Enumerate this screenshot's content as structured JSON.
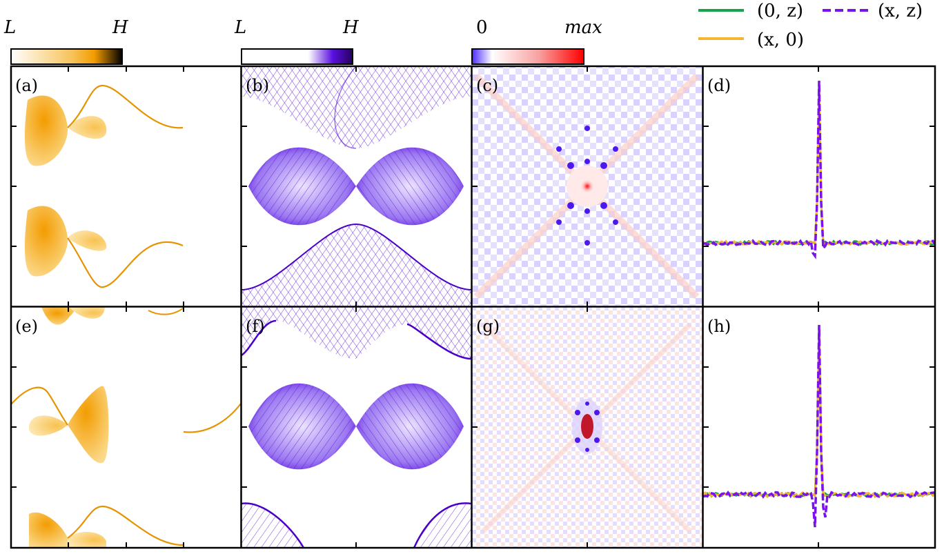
{
  "colorbars": [
    {
      "low_label": "L",
      "high_label": "H",
      "colors": [
        "#ffffff",
        "#f7a600",
        "#000000"
      ]
    },
    {
      "low_label": "L",
      "high_label": "H",
      "colors": [
        "#ffffff",
        "#5a10e0",
        "#2a0070"
      ]
    },
    {
      "low_label": "0",
      "high_label": "max",
      "colors": [
        "#4b2bff",
        "#ffffff",
        "#ff0000"
      ]
    }
  ],
  "panel_labels": [
    "(a)",
    "(b)",
    "(c)",
    "(d)",
    "(e)",
    "(f)",
    "(g)",
    "(h)"
  ],
  "legend": [
    {
      "label": "(0, z)",
      "color": "#16a34a",
      "style": "solid"
    },
    {
      "label": "(x, 0)",
      "color": "#f2b631",
      "style": "solid"
    },
    {
      "label": "(x, z)",
      "color": "#7a12ee",
      "style": "dashed"
    }
  ],
  "colors": {
    "orange": "#f5b22a",
    "orange_dark": "#e59400",
    "purple": "#6a17e0",
    "purple_light": "#b9a3f5",
    "red": "#ff1a1a"
  },
  "chart_data": [
    {
      "type": "heatmap",
      "panel": "(a)",
      "description": "spectral function, orange colormap"
    },
    {
      "type": "heatmap",
      "panel": "(b)",
      "description": "spectral function, purple colormap"
    },
    {
      "type": "heatmap",
      "panel": "(c)",
      "description": "real-space map, 0 to max"
    },
    {
      "type": "line",
      "panel": "(d)",
      "series": [
        {
          "name": "(0, z)",
          "peak": 1.0,
          "baseline": 0.0
        },
        {
          "name": "(x, 0)",
          "peak": 1.0,
          "baseline": 0.0
        },
        {
          "name": "(x, z)",
          "peak": 1.0,
          "baseline": 0.0,
          "dip": -0.08
        }
      ]
    },
    {
      "type": "heatmap",
      "panel": "(e)",
      "description": "spectral function, orange colormap"
    },
    {
      "type": "heatmap",
      "panel": "(f)",
      "description": "spectral function, purple colormap"
    },
    {
      "type": "heatmap",
      "panel": "(g)",
      "description": "real-space map, 0 to max"
    },
    {
      "type": "line",
      "panel": "(h)",
      "series": [
        {
          "name": "(0, z)",
          "peak": 1.0,
          "baseline": 0.0
        },
        {
          "name": "(x, 0)",
          "peak": 1.0,
          "baseline": 0.0
        },
        {
          "name": "(x, z)",
          "peak": 1.0,
          "baseline": 0.0,
          "dip": -0.2
        }
      ]
    }
  ]
}
